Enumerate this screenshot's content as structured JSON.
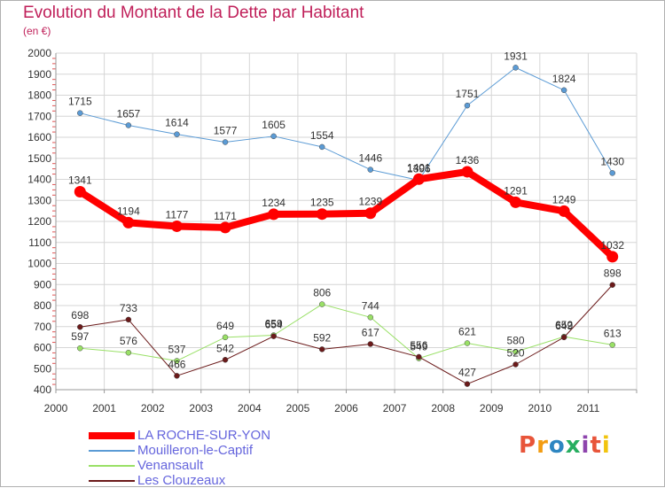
{
  "chart_data": {
    "type": "line",
    "title": "Evolution du Montant de la Dette par Habitant",
    "subtitle": "(en €)",
    "x": [
      "2000",
      "2001",
      "2002",
      "2003",
      "2004",
      "2005",
      "2006",
      "2007",
      "2008",
      "2009",
      "2010",
      "2011"
    ],
    "ylim": [
      400,
      2000
    ],
    "yticks": [
      400,
      500,
      600,
      700,
      800,
      900,
      1000,
      1100,
      1200,
      1300,
      1400,
      1500,
      1600,
      1700,
      1800,
      1900,
      2000
    ],
    "grid": true,
    "legend_position": "bottom-left",
    "series": [
      {
        "name": "LA ROCHE-SUR-YON",
        "color": "#ff0000",
        "width": 8,
        "values": [
          1341,
          1194,
          1177,
          1171,
          1234,
          1235,
          1239,
          1401,
          1436,
          1291,
          1249,
          1032
        ],
        "labels": [
          "1341",
          "1194",
          "1177",
          "1171",
          "1234",
          "1235",
          "1239",
          "1401",
          "1436",
          "1291",
          "1249",
          "1032"
        ]
      },
      {
        "name": "Mouilleron-le-Captif",
        "color": "#5b9bd5",
        "width": 1,
        "values": [
          1715,
          1657,
          1614,
          1577,
          1605,
          1554,
          1446,
          1396,
          1751,
          1931,
          1824,
          1430
        ],
        "labels": [
          "1715",
          "1657",
          "1614",
          "1577",
          "1605",
          "1554",
          "1446",
          "1396",
          "1751",
          "1931",
          "1824",
          "1430"
        ]
      },
      {
        "name": "Venansault",
        "color": "#99e066",
        "width": 1,
        "values": [
          597,
          576,
          537,
          649,
          659,
          806,
          744,
          549,
          621,
          580,
          652,
          613
        ],
        "labels": [
          "597",
          "576",
          "537",
          "649",
          "659",
          "806",
          "744",
          "549",
          "621",
          "580",
          "652",
          "613"
        ]
      },
      {
        "name": "Les Clouzeaux",
        "color": "#6b1a1a",
        "width": 1,
        "values": [
          698,
          733,
          466,
          542,
          654,
          592,
          617,
          556,
          427,
          520,
          649,
          898
        ],
        "labels": [
          "698",
          "733",
          "466",
          "542",
          "654",
          "592",
          "617",
          "556",
          "427",
          "520",
          "649",
          "898"
        ]
      }
    ]
  },
  "logo": {
    "text": "Proxiti",
    "colors": [
      "#e8553a",
      "#f39c12",
      "#2e86c1",
      "#27ae60",
      "#8e44ad",
      "#e8553a",
      "#f1c40f"
    ]
  }
}
